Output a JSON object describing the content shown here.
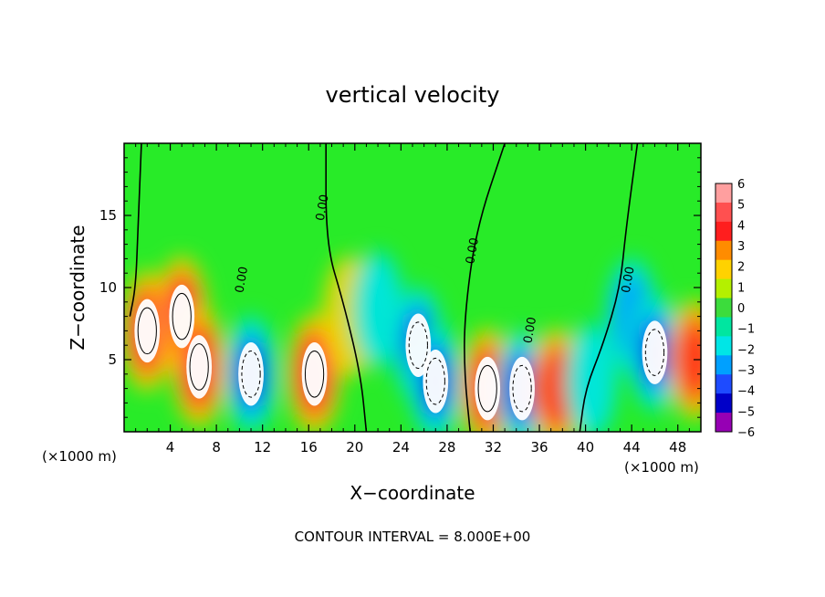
{
  "chart_data": {
    "type": "heatmap",
    "title": "vertical velocity",
    "xlabel": "X−coordinate",
    "ylabel": "Z−coordinate",
    "x_unit_left": "(×1000 m)",
    "x_unit_right": "(×1000 m)",
    "footer": "CONTOUR INTERVAL = 8.000E+00",
    "xlim": [
      0,
      50
    ],
    "ylim": [
      0,
      20
    ],
    "x_ticks": [
      {
        "value": 4,
        "label": "4"
      },
      {
        "value": 8,
        "label": "8"
      },
      {
        "value": 12,
        "label": "12"
      },
      {
        "value": 16,
        "label": "16"
      },
      {
        "value": 20,
        "label": "20"
      },
      {
        "value": 24,
        "label": "24"
      },
      {
        "value": 28,
        "label": "28"
      },
      {
        "value": 32,
        "label": "32"
      },
      {
        "value": 36,
        "label": "36"
      },
      {
        "value": 40,
        "label": "40"
      },
      {
        "value": 44,
        "label": "44"
      },
      {
        "value": 48,
        "label": "48"
      }
    ],
    "y_ticks": [
      {
        "value": 5,
        "label": "5"
      },
      {
        "value": 10,
        "label": "10"
      },
      {
        "value": 15,
        "label": "15"
      }
    ],
    "colorbar": {
      "levels": [
        6,
        5,
        4,
        3,
        2,
        1,
        0,
        -1,
        -2,
        -3,
        -4,
        -5,
        -6
      ],
      "labels": [
        "6",
        "5",
        "4",
        "3",
        "2",
        "1",
        "0",
        "−1",
        "−2",
        "−3",
        "−4",
        "−5",
        "−6"
      ],
      "colors": [
        "#ff9f9f",
        "#ff5050",
        "#ff1e1e",
        "#ff8c00",
        "#ffd200",
        "#b4f000",
        "#3cdc3c",
        "#00e6a0",
        "#00e6e6",
        "#00a0ff",
        "#1e4bff",
        "#0000c8",
        "#9600b4"
      ]
    },
    "background_color": "#28eb28",
    "cells": [
      {
        "x": 2.0,
        "z": 7.0,
        "w": 0.85
      },
      {
        "x": 5.0,
        "z": 8.0,
        "w": 0.85
      },
      {
        "x": 6.5,
        "z": 4.5,
        "w": 0.75
      },
      {
        "x": 11.0,
        "z": 4.0,
        "w": -0.8
      },
      {
        "x": 16.5,
        "z": 4.0,
        "w": 0.85
      },
      {
        "x": 19.5,
        "z": 8.0,
        "w": 0.2
      },
      {
        "x": 22.0,
        "z": 8.5,
        "w": -0.35
      },
      {
        "x": 25.5,
        "z": 6.0,
        "w": -0.9
      },
      {
        "x": 27.0,
        "z": 3.5,
        "w": -0.75
      },
      {
        "x": 31.5,
        "z": 3.0,
        "w": 0.7
      },
      {
        "x": 34.5,
        "z": 3.0,
        "w": -0.75
      },
      {
        "x": 37.5,
        "z": 3.0,
        "w": 0.65
      },
      {
        "x": 40.5,
        "z": 3.5,
        "w": -0.3
      },
      {
        "x": 44.0,
        "z": 8.0,
        "w": -0.45
      },
      {
        "x": 46.0,
        "z": 5.5,
        "w": -0.9
      },
      {
        "x": 49.5,
        "z": 5.0,
        "w": 0.55
      }
    ],
    "contour_labels": [
      {
        "x": 17.5,
        "z": 15.5,
        "label": "0.00"
      },
      {
        "x": 10.5,
        "z": 10.5,
        "label": "0.00"
      },
      {
        "x": 30.5,
        "z": 12.5,
        "label": "0.00"
      },
      {
        "x": 35.5,
        "z": 7.0,
        "label": "0.00"
      },
      {
        "x": 44.0,
        "z": 10.5,
        "label": "0.00"
      }
    ]
  }
}
